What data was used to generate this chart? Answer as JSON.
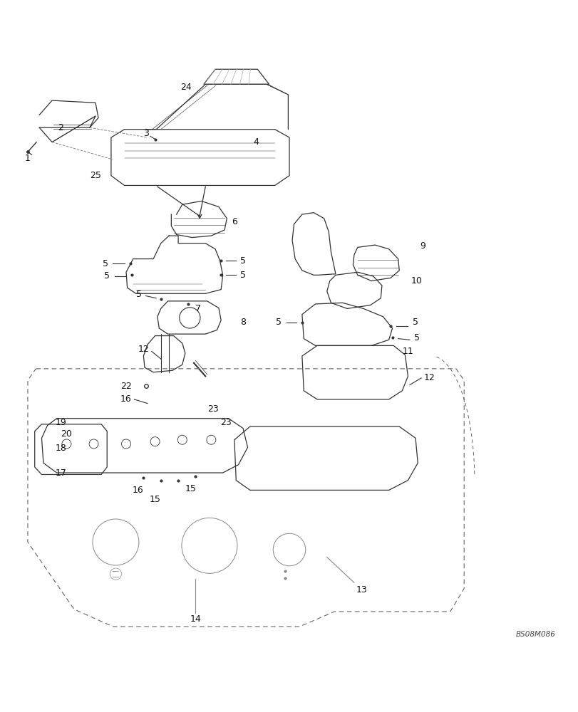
{
  "background_color": "#ffffff",
  "watermark": "BS08M086",
  "line_color": "#333333",
  "gray_color": "#888888",
  "dash_color": "#666666",
  "label_fontsize": 9
}
